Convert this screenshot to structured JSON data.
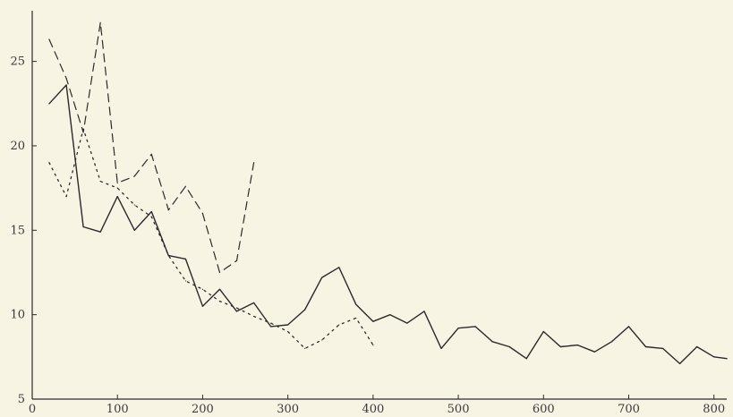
{
  "chart_data": {
    "type": "line",
    "title": "",
    "xlabel": "",
    "ylabel": "",
    "xlim": [
      0,
      815
    ],
    "ylim": [
      5,
      28
    ],
    "grid": false,
    "legend": "none",
    "x_ticks": [
      {
        "value": 0,
        "label": "0"
      },
      {
        "value": 100,
        "label": "100"
      },
      {
        "value": 200,
        "label": "200"
      },
      {
        "value": 300,
        "label": "300"
      },
      {
        "value": 400,
        "label": "400"
      },
      {
        "value": 500,
        "label": "500"
      },
      {
        "value": 600,
        "label": "600"
      },
      {
        "value": 700,
        "label": "700"
      },
      {
        "value": 800,
        "label": "800"
      }
    ],
    "y_ticks": [
      {
        "value": 5,
        "label": "5"
      },
      {
        "value": 10,
        "label": "10"
      },
      {
        "value": 15,
        "label": "15"
      },
      {
        "value": 20,
        "label": "20"
      },
      {
        "value": 25,
        "label": "25"
      }
    ],
    "series": [
      {
        "style": "solid",
        "color": "#2a2a2a",
        "x": [
          20,
          40,
          60,
          80,
          100,
          120,
          140,
          160,
          180,
          200,
          220,
          240,
          260,
          280,
          300,
          320,
          340,
          360,
          380,
          400,
          420,
          440,
          460,
          480,
          500,
          520,
          540,
          560,
          580,
          600,
          620,
          640,
          660,
          680,
          700,
          720,
          740,
          760,
          780,
          800,
          815
        ],
        "y": [
          22.5,
          23.6,
          15.2,
          14.9,
          17.0,
          15.0,
          16.1,
          13.5,
          13.3,
          10.5,
          11.5,
          10.2,
          10.7,
          9.3,
          9.4,
          10.3,
          12.2,
          12.8,
          10.6,
          9.6,
          10.0,
          9.5,
          10.2,
          8.0,
          9.2,
          9.3,
          8.4,
          8.1,
          7.4,
          9.0,
          8.1,
          8.2,
          7.8,
          8.4,
          9.3,
          8.1,
          8.0,
          7.1,
          8.1,
          7.5,
          7.4
        ]
      },
      {
        "style": "dashed",
        "color": "#2a2a2a",
        "x": [
          20,
          40,
          60,
          80,
          100,
          120,
          140,
          160,
          180,
          200,
          220,
          240,
          260
        ],
        "y": [
          26.3,
          24.0,
          20.8,
          27.3,
          17.8,
          18.2,
          19.5,
          16.2,
          17.6,
          16.0,
          12.5,
          13.2,
          19.0
        ]
      },
      {
        "style": "dotted",
        "color": "#2a2a2a",
        "x": [
          20,
          40,
          60,
          80,
          100,
          120,
          140,
          160,
          180,
          200,
          220,
          240,
          260,
          280,
          300,
          320,
          340,
          360,
          380,
          400
        ],
        "y": [
          19.0,
          17.0,
          21.0,
          17.9,
          17.5,
          16.5,
          15.8,
          13.5,
          12.0,
          11.5,
          10.8,
          10.4,
          9.9,
          9.5,
          9.0,
          8.0,
          8.5,
          9.4,
          9.8,
          8.2
        ]
      }
    ]
  }
}
